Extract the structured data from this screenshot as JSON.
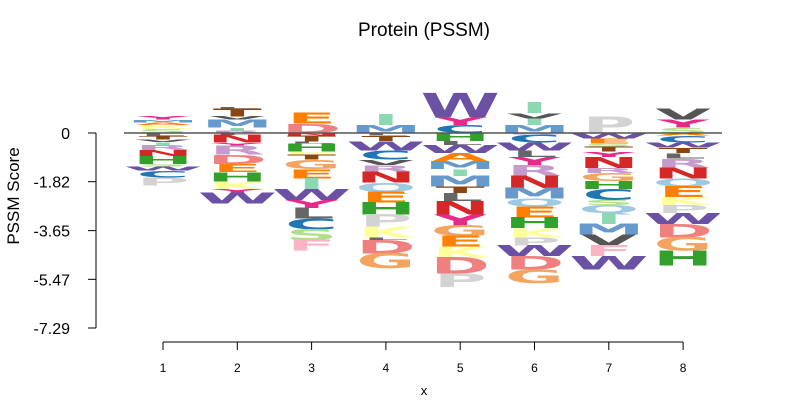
{
  "chart_data": {
    "type": "sequence-logo",
    "title": "Protein (PSSM)",
    "xlabel": "x",
    "ylabel": "PSSM  Score",
    "y_ticks": [
      "0",
      "-1.82",
      "-3.65",
      "-5.47",
      "-7.29"
    ],
    "y_tick_values": [
      0,
      -1.82,
      -3.65,
      -5.47,
      -7.29
    ],
    "x_ticks": [
      "1",
      "2",
      "3",
      "4",
      "5",
      "6",
      "7",
      "8"
    ],
    "ylim": [
      -7.29,
      1.0
    ],
    "colors": {
      "A": "#ff7f00",
      "C": "#1f78b4",
      "D": "#f08080",
      "E": "#ff7f00",
      "F": "#fbb4c4",
      "G": "#f4a460",
      "H": "#33a02c",
      "I": "#8cd8b0",
      "K": "#ffff99",
      "L": "#666666",
      "M": "#6699cc",
      "N": "#d62728",
      "P": "#d3d3d3",
      "Q": "#9ecae1",
      "R": "#c49bcc",
      "S": "#b2df8a",
      "T": "#8b4513",
      "V": "#555555",
      "W": "#6a51a3",
      "Y": "#e7298a"
    },
    "positions": [
      {
        "pos": 1,
        "pos_letters": [
          [
            "S",
            0.15
          ],
          [
            "K",
            0.15
          ],
          [
            "A",
            0.1
          ],
          [
            "M",
            0.1
          ],
          [
            "Y",
            0.13
          ]
        ],
        "neg_letters": [
          [
            "L",
            0.12
          ],
          [
            "T",
            0.12
          ],
          [
            "V",
            0.1
          ],
          [
            "I",
            0.1
          ],
          [
            "R",
            0.2
          ],
          [
            "N",
            0.22
          ],
          [
            "H",
            0.3
          ],
          [
            "S",
            0.1
          ],
          [
            "W",
            0.15
          ],
          [
            "C",
            0.25
          ],
          [
            "P",
            0.3
          ]
        ]
      },
      {
        "pos": 2,
        "pos_letters": [
          [
            "R",
            0.1
          ],
          [
            "I",
            0.1
          ],
          [
            "M",
            0.3
          ],
          [
            "V",
            0.12
          ],
          [
            "T",
            0.3
          ],
          [
            "L",
            0.05
          ]
        ],
        "neg_letters": [
          [
            "L",
            0.08
          ],
          [
            "N",
            0.28
          ],
          [
            "Y",
            0.1
          ],
          [
            "R",
            0.35
          ],
          [
            "D",
            0.35
          ],
          [
            "E",
            0.3
          ],
          [
            "H",
            0.35
          ],
          [
            "K",
            0.3
          ],
          [
            "Y",
            0.12
          ],
          [
            "W",
            0.4
          ]
        ]
      },
      {
        "pos": 3,
        "pos_letters": [
          [
            "D",
            0.35
          ],
          [
            "E",
            0.4
          ]
        ],
        "neg_letters": [
          [
            "N",
            0.1
          ],
          [
            "T",
            0.22
          ],
          [
            "L",
            0.08
          ],
          [
            "H",
            0.3
          ],
          [
            "K",
            0.1
          ],
          [
            "T",
            0.2
          ],
          [
            "G",
            0.35
          ],
          [
            "E",
            0.35
          ],
          [
            "I",
            0.4
          ],
          [
            "W",
            0.4
          ],
          [
            "Y",
            0.3
          ],
          [
            "L",
            0.4
          ],
          [
            "C",
            0.4
          ],
          [
            "S",
            0.4
          ],
          [
            "F",
            0.4
          ]
        ]
      },
      {
        "pos": 4,
        "pos_letters": [
          [
            "M",
            0.3
          ],
          [
            "I",
            0.4
          ]
        ],
        "neg_letters": [
          [
            "L",
            0.1
          ],
          [
            "T",
            0.2
          ],
          [
            "W",
            0.35
          ],
          [
            "C",
            0.35
          ],
          [
            "V",
            0.2
          ],
          [
            "R",
            0.25
          ],
          [
            "N",
            0.4
          ],
          [
            "Q",
            0.35
          ],
          [
            "E",
            0.4
          ],
          [
            "H",
            0.45
          ],
          [
            "P",
            0.45
          ],
          [
            "K",
            0.4
          ],
          [
            "L",
            0.1
          ],
          [
            "D",
            0.5
          ],
          [
            "G",
            0.55
          ]
        ]
      },
      {
        "pos": 5,
        "pos_letters": [
          [
            "C",
            0.3
          ],
          [
            "Y",
            0.3
          ],
          [
            "W",
            0.9
          ]
        ],
        "neg_letters": [
          [
            "H",
            0.3
          ],
          [
            "L",
            0.15
          ],
          [
            "W",
            0.3
          ],
          [
            "A",
            0.3
          ],
          [
            "M",
            0.3
          ],
          [
            "I",
            0.25
          ],
          [
            "M",
            0.4
          ],
          [
            "T",
            0.25
          ],
          [
            "L",
            0.3
          ],
          [
            "N",
            0.5
          ],
          [
            "Y",
            0.4
          ],
          [
            "G",
            0.4
          ],
          [
            "E",
            0.4
          ],
          [
            "K",
            0.4
          ],
          [
            "D",
            0.6
          ],
          [
            "P",
            0.5
          ]
        ]
      },
      {
        "pos": 6,
        "pos_letters": [
          [
            "M",
            0.3
          ],
          [
            "I",
            0.25
          ],
          [
            "V",
            0.2
          ],
          [
            "I",
            0.4
          ]
        ],
        "neg_letters": [
          [
            "R",
            0.05
          ],
          [
            "C",
            0.3
          ],
          [
            "W",
            0.3
          ],
          [
            "L",
            0.25
          ],
          [
            "Y",
            0.3
          ],
          [
            "R",
            0.4
          ],
          [
            "N",
            0.45
          ],
          [
            "M",
            0.4
          ],
          [
            "Q",
            0.3
          ],
          [
            "E",
            0.4
          ],
          [
            "H",
            0.4
          ],
          [
            "K",
            0.35
          ],
          [
            "P",
            0.3
          ],
          [
            "W",
            0.4
          ],
          [
            "D",
            0.5
          ],
          [
            "G",
            0.5
          ]
        ]
      },
      {
        "pos": 7,
        "pos_letters": [
          [
            "P",
            0.6
          ]
        ],
        "neg_letters": [
          [
            "W",
            0.2
          ],
          [
            "E",
            0.2
          ],
          [
            "S",
            0.1
          ],
          [
            "T",
            0.2
          ],
          [
            "Y",
            0.2
          ],
          [
            "N",
            0.4
          ],
          [
            "R",
            0.2
          ],
          [
            "G",
            0.3
          ],
          [
            "H",
            0.3
          ],
          [
            "C",
            0.4
          ],
          [
            "S",
            0.2
          ],
          [
            "Q",
            0.3
          ],
          [
            "I",
            0.4
          ],
          [
            "M",
            0.4
          ],
          [
            "V",
            0.4
          ],
          [
            "F",
            0.4
          ],
          [
            "W",
            0.5
          ]
        ]
      },
      {
        "pos": 8,
        "pos_letters": [
          [
            "S",
            0.2
          ],
          [
            "Y",
            0.3
          ],
          [
            "V",
            0.4
          ]
        ],
        "neg_letters": [
          [
            "A",
            0.1
          ],
          [
            "C",
            0.25
          ],
          [
            "W",
            0.2
          ],
          [
            "T",
            0.2
          ],
          [
            "L",
            0.2
          ],
          [
            "R",
            0.35
          ],
          [
            "N",
            0.4
          ],
          [
            "Q",
            0.3
          ],
          [
            "E",
            0.4
          ],
          [
            "K",
            0.3
          ],
          [
            "P",
            0.3
          ],
          [
            "W",
            0.4
          ],
          [
            "D",
            0.5
          ],
          [
            "G",
            0.5
          ],
          [
            "H",
            0.55
          ]
        ]
      }
    ]
  }
}
